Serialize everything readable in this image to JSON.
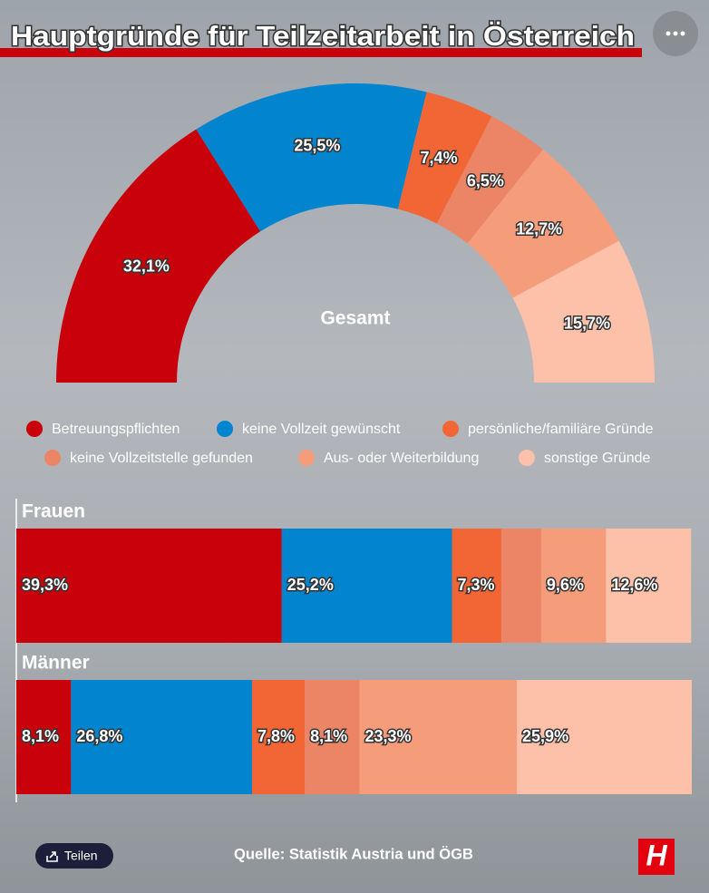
{
  "chart_data": [
    {
      "type": "half-donut",
      "title": "Hauptgründe für Teilzeitarbeit in Österreich",
      "center_label": "Gesamt",
      "categories": [
        "Betreuungspflichten",
        "keine Vollzeit gewünscht",
        "persönliche/familiäre Gründe",
        "keine Vollzeitstelle gefunden",
        "Aus- oder Weiterbildung",
        "sonstige Gründe"
      ],
      "colors": [
        "#c8010a",
        "#0284cf",
        "#f26535",
        "#ec8466",
        "#f59c7b",
        "#fdc0a8"
      ],
      "values": [
        32.1,
        25.5,
        7.4,
        6.5,
        12.7,
        15.7
      ],
      "value_labels": [
        "32,1%",
        "25,5%",
        "7,4%",
        "6,5%",
        "12,7%",
        "15,7%"
      ]
    },
    {
      "type": "stacked-hbar",
      "categories": [
        "Frauen",
        "Männer"
      ],
      "xlim": [
        0,
        100
      ],
      "series": [
        {
          "color": "#c8010a",
          "values": [
            39.3,
            8.1
          ],
          "value_labels": [
            "39,3%",
            "8,1%"
          ]
        },
        {
          "color": "#0284cf",
          "values": [
            25.2,
            26.8
          ],
          "value_labels": [
            "25,2%",
            "26,8%"
          ]
        },
        {
          "color": "#f26535",
          "values": [
            7.3,
            7.8
          ],
          "value_labels": [
            "7,3%",
            "7,8%"
          ]
        },
        {
          "color": "#ec8466",
          "values": [
            5.9,
            8.1
          ],
          "value_labels": [
            null,
            "8,1%"
          ]
        },
        {
          "color": "#f59c7b",
          "values": [
            9.6,
            23.3
          ],
          "value_labels": [
            "9,6%",
            "23,3%"
          ]
        },
        {
          "color": "#fdc0a8",
          "values": [
            12.6,
            25.9
          ],
          "value_labels": [
            "12,6%",
            "25,9%"
          ]
        }
      ]
    }
  ],
  "footer": {
    "share": "Teilen",
    "source": "Quelle: Statistik Austria und ÖGB",
    "logo": "H"
  }
}
